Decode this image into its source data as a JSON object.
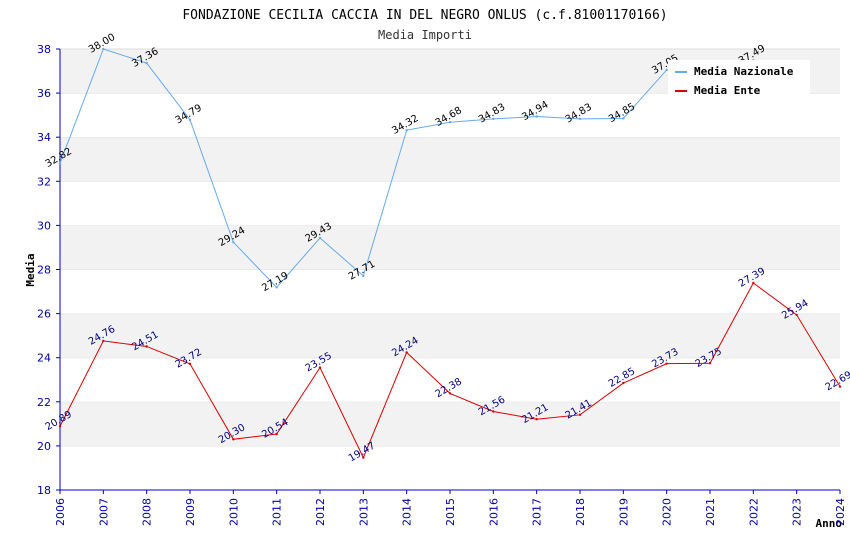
{
  "chart_data": {
    "type": "line",
    "title": "FONDAZIONE CECILIA CACCIA IN DEL NEGRO ONLUS (c.f.81001170166)",
    "subtitle": "Media Importi",
    "xlabel": "Anno",
    "ylabel": "Media",
    "ylim": [
      18,
      38
    ],
    "yticks": [
      "18",
      "20",
      "22",
      "24",
      "26",
      "28",
      "30",
      "32",
      "34",
      "36",
      "38"
    ],
    "categories": [
      "2006",
      "2007",
      "2008",
      "2009",
      "2010",
      "2011",
      "2012",
      "2013",
      "2014",
      "2015",
      "2016",
      "2017",
      "2018",
      "2019",
      "2020",
      "2021",
      "2022",
      "2023",
      "2024"
    ],
    "series": [
      {
        "name": "Media Nazionale",
        "color": "#66aaee",
        "values": [
          32.82,
          38.0,
          37.36,
          34.79,
          29.24,
          27.19,
          29.43,
          27.71,
          34.32,
          34.68,
          34.83,
          34.94,
          34.83,
          34.85,
          37.05,
          null,
          37.49,
          null,
          null
        ],
        "labels": [
          "32.82",
          "38.00",
          "37.36",
          "34.79",
          "29.24",
          "27.19",
          "29.43",
          "27.71",
          "34.32",
          "34.68",
          "34.83",
          "34.94",
          "34.83",
          "34.85",
          "37.05",
          "",
          "37.49",
          "",
          ""
        ]
      },
      {
        "name": "Media Ente",
        "color": "#dd0000",
        "values": [
          20.89,
          24.76,
          24.51,
          23.72,
          20.3,
          20.54,
          23.55,
          19.47,
          24.24,
          22.38,
          21.56,
          21.21,
          21.41,
          22.85,
          23.73,
          23.75,
          27.39,
          25.94,
          22.69
        ],
        "labels": [
          "20.89",
          "24.76",
          "24.51",
          "23.72",
          "20.30",
          "20.54",
          "23.55",
          "19.47",
          "24.24",
          "22.38",
          "21.56",
          "21.21",
          "21.41",
          "22.85",
          "23.73",
          "23.75",
          "27.39",
          "25.94",
          "22.69"
        ]
      }
    ],
    "grid": true,
    "legend_position": "top-right"
  }
}
